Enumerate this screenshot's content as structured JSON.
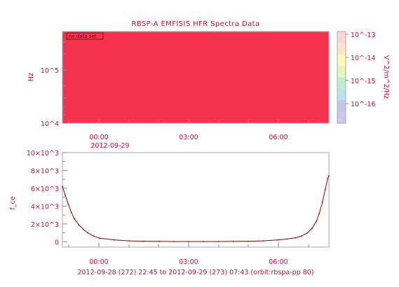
{
  "title": "RBSP-A EMFISIS HFR Spectra Data",
  "chart_data": [
    {
      "type": "heatmap",
      "name": "spectrogram",
      "ylabel": "Hz",
      "yscale": "log",
      "ytick_labels": [
        "10^4",
        "10^5"
      ],
      "xtick_labels": [
        "00:00",
        "03:00",
        "06:00"
      ],
      "xdate_label": "2012-09-29",
      "fill_color": "#f5334d",
      "annotation": "no data set",
      "colorbar": {
        "label": "V^2/m^2/Hz",
        "scale": "log",
        "tick_labels": [
          "10^-13",
          "10^-14",
          "10^-15",
          "10^-16"
        ],
        "colors": [
          "#ffd6d6",
          "#ffe4c7",
          "#fff9b8",
          "#e4f7b8",
          "#b8f0cf",
          "#b8e2ef",
          "#c3c5ee",
          "#d2c6ef"
        ]
      }
    },
    {
      "type": "line",
      "name": "f_ce",
      "ylabel": "f_ce",
      "xtick_labels": [
        "00:00",
        "03:00",
        "06:00"
      ],
      "ytick_labels": [
        "0",
        "2×10^3",
        "4×10^3",
        "6×10^3",
        "8×10^3",
        "10×10^3"
      ],
      "ylim": [
        -600,
        10000
      ],
      "x_hours_range": [
        -1.25,
        7.72
      ],
      "x": [
        -1.25,
        -1.15,
        -1.05,
        -0.95,
        -0.85,
        -0.7,
        -0.55,
        -0.4,
        -0.2,
        0.0,
        0.5,
        1.0,
        1.5,
        2.0,
        2.5,
        3.0,
        3.5,
        4.0,
        4.5,
        5.0,
        5.5,
        6.0,
        6.3,
        6.6,
        6.8,
        7.0,
        7.15,
        7.3,
        7.4,
        7.5,
        7.6,
        7.68,
        7.72
      ],
      "y": [
        6200,
        5200,
        4200,
        3300,
        2600,
        1900,
        1400,
        1000,
        650,
        400,
        200,
        100,
        60,
        40,
        30,
        25,
        25,
        30,
        40,
        60,
        100,
        200,
        300,
        450,
        650,
        1000,
        1500,
        2300,
        3200,
        4400,
        5900,
        7100,
        7400
      ],
      "line_color": "#8b0000",
      "footer": "2012-09-28 (272) 22:45 to 2012-09-29 (273) 07:43 (orbit:rbspa-pp 80)"
    }
  ]
}
